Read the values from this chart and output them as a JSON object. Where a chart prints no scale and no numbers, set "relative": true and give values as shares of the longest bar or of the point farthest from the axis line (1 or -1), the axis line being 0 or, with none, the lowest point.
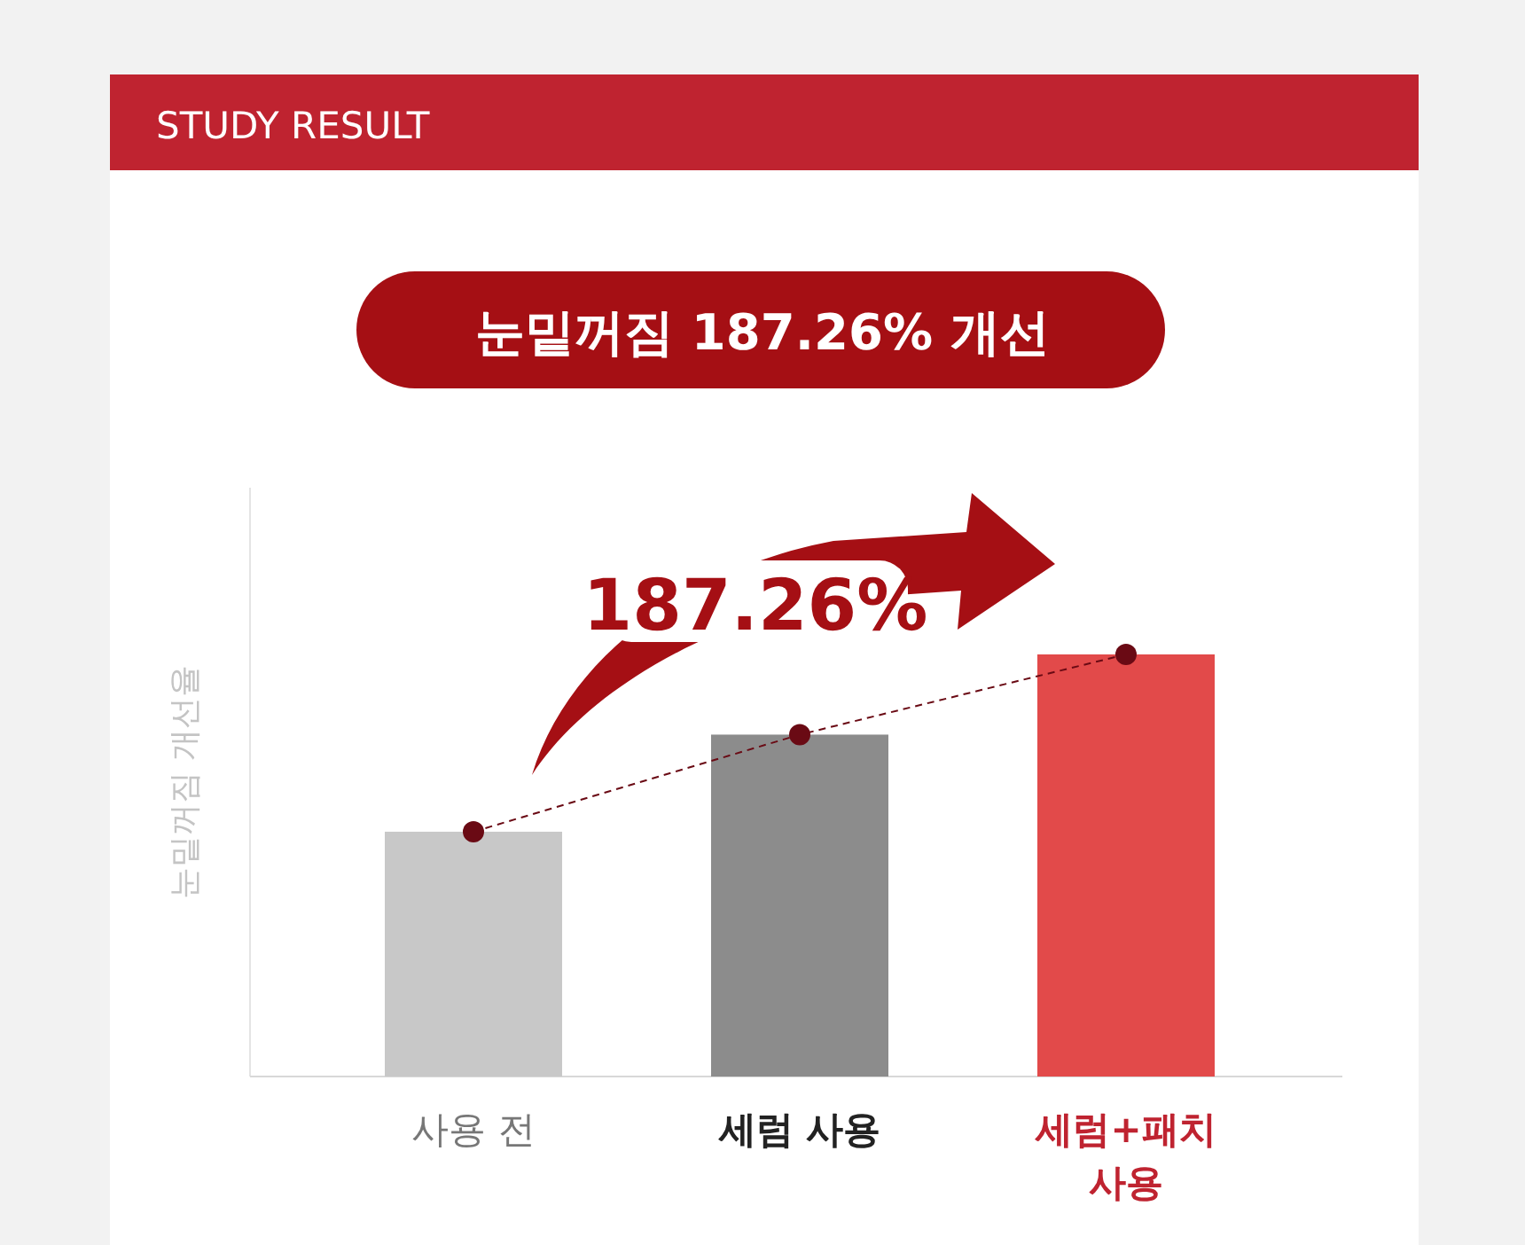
{
  "chart_data": {
    "type": "bar",
    "title": "STUDY RESULT",
    "subtitle": "눈밑꺼짐 187.26% 개선",
    "ylabel": "눈밑꺼짐 개선율",
    "categories": [
      "사용 전",
      "세럼 사용",
      "세럼+패치 사용"
    ],
    "relative": true,
    "series": [
      {
        "colors": [
          "#c8c8c8",
          "#8c8c8c",
          "#e24a4a"
        ],
        "values": [
          0.58,
          0.81,
          1
        ]
      },
      {
        "type": "line",
        "color": "#6a0a14",
        "values": [
          0.58,
          0.81,
          1
        ],
        "marker": "circle",
        "line_style": "dashed"
      }
    ],
    "annotations": [
      "187.26%"
    ]
  }
}
